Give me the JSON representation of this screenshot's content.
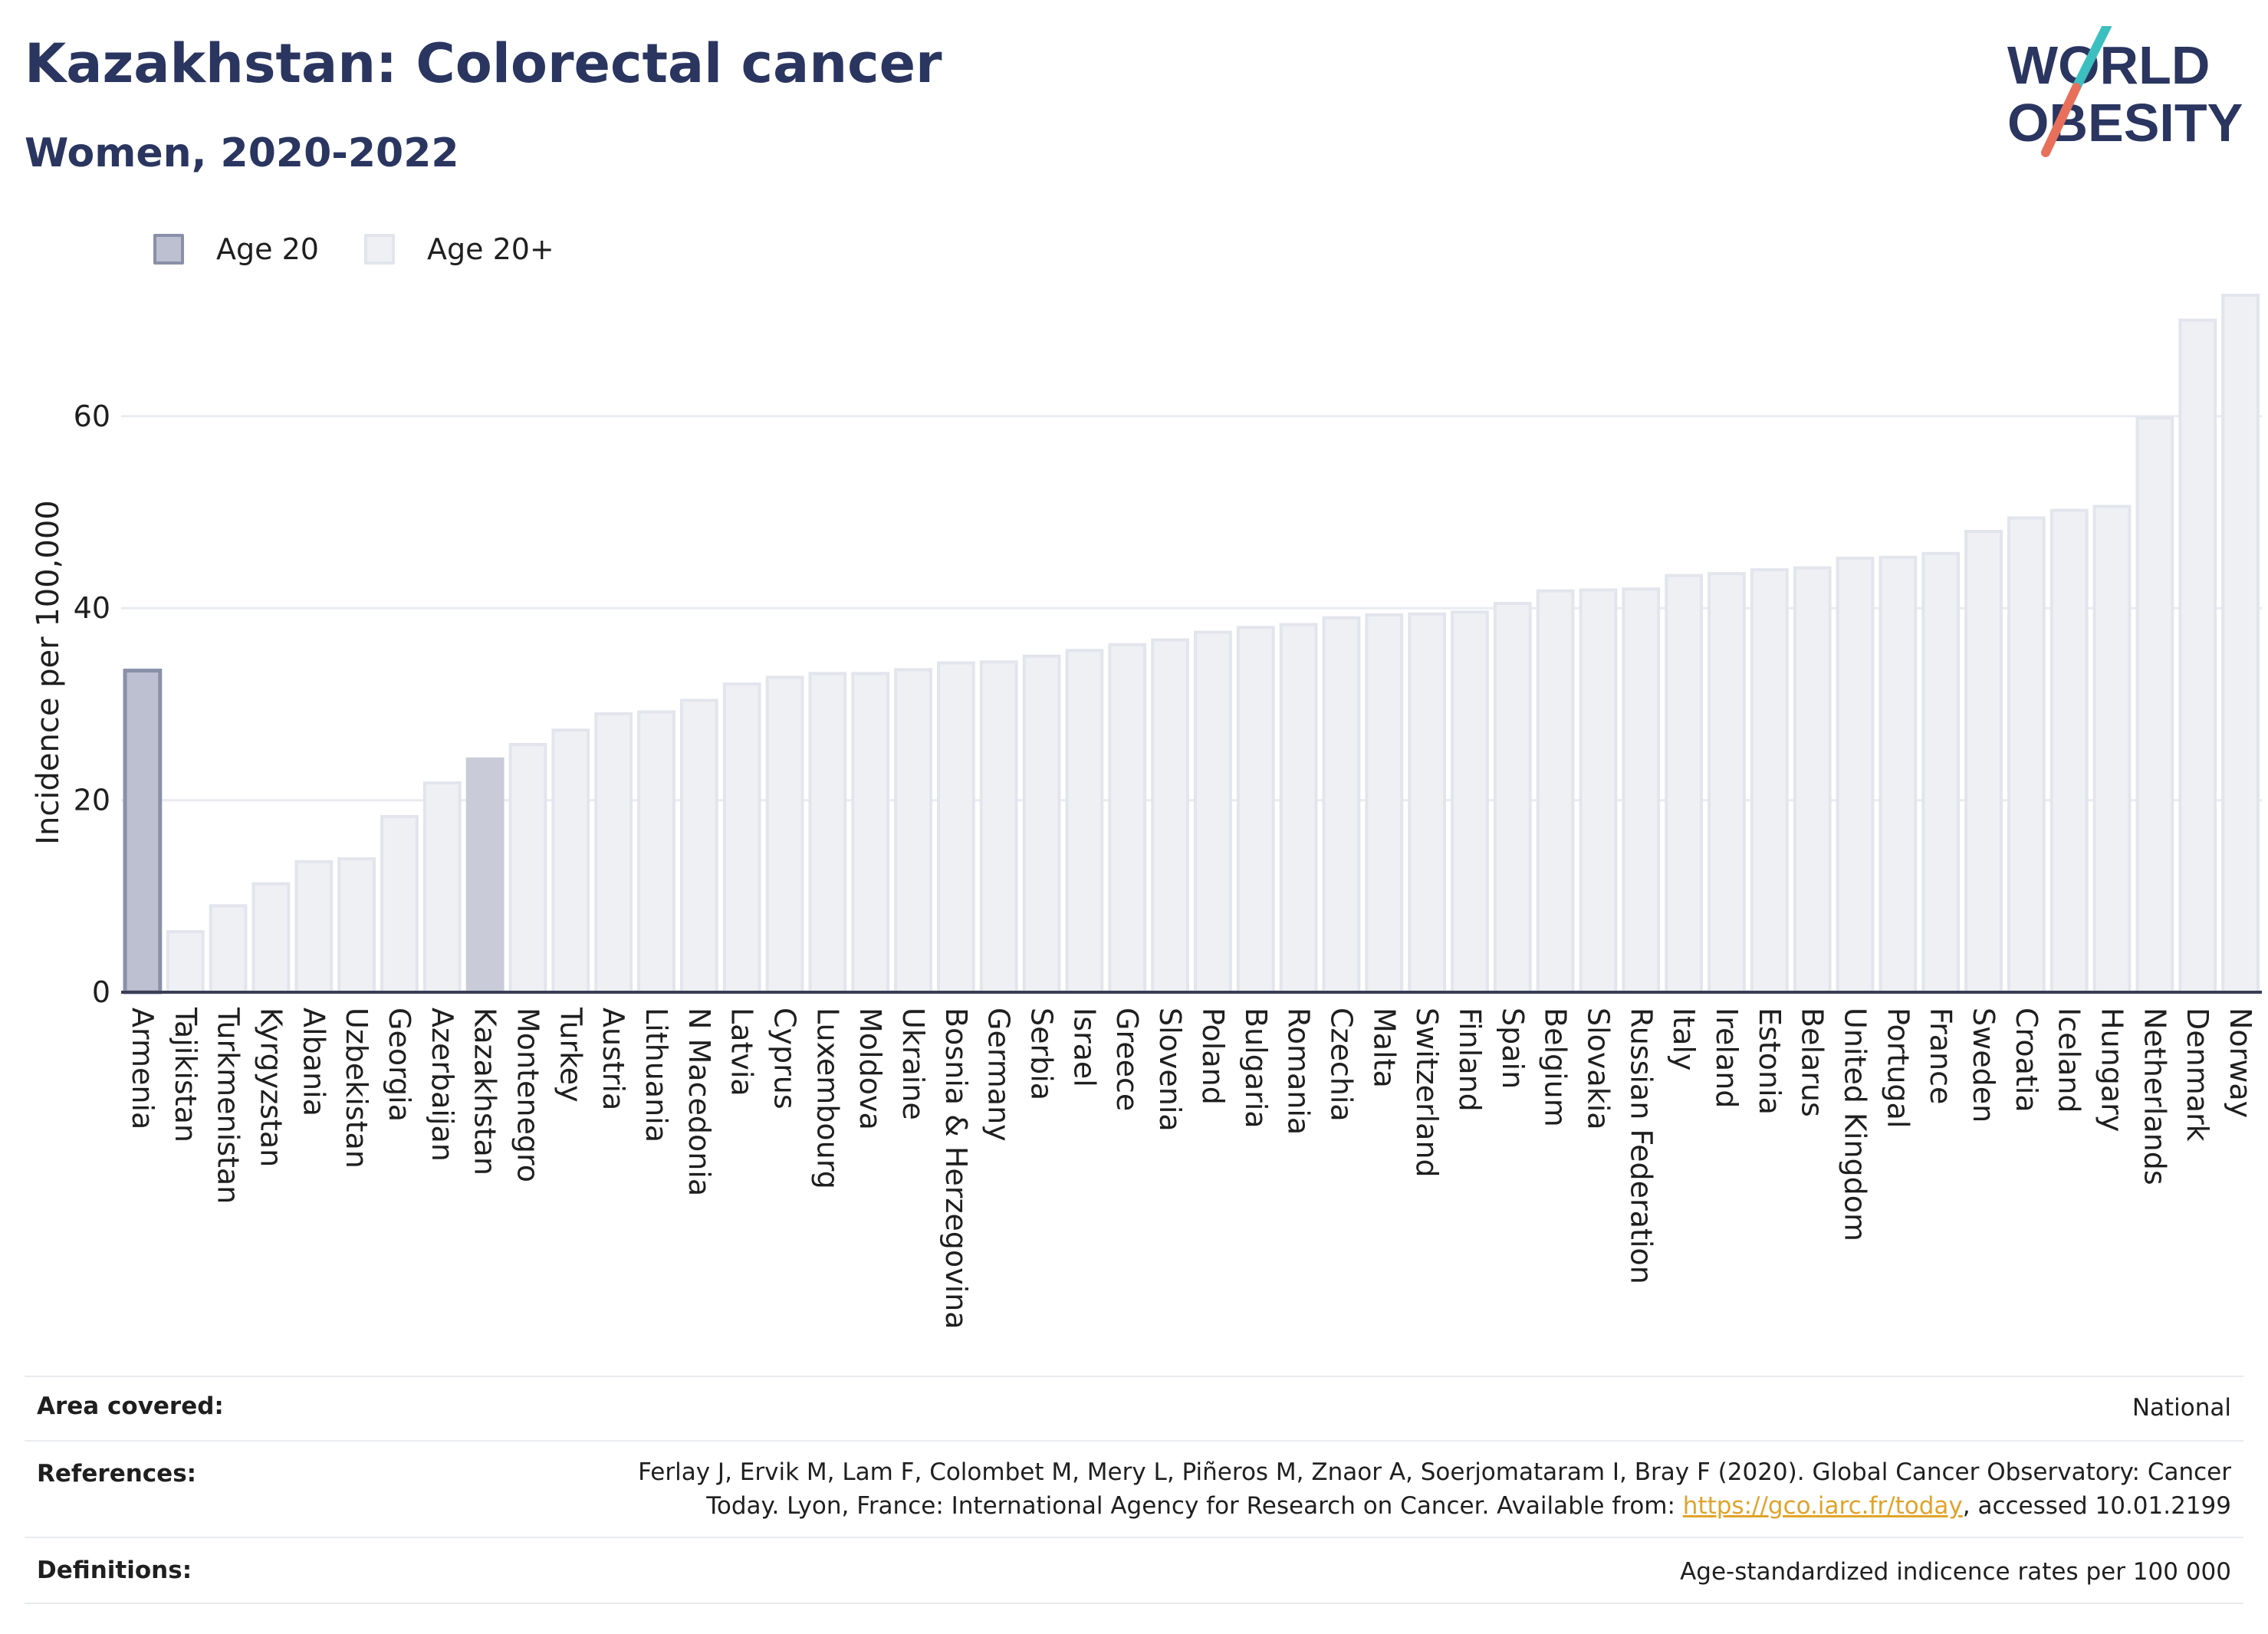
{
  "header": {
    "title": "Kazakhstan: Colorectal cancer",
    "subtitle": "Women, 2020-2022",
    "logo_line1": "WORLD",
    "logo_line2": "OBESITY"
  },
  "legend": {
    "items": [
      {
        "label": "Age 20",
        "color": "#bcc0d0",
        "border": "#8a90a8"
      },
      {
        "label": "Age 20+",
        "color": "#eef0f4",
        "border": "#e2e5ec"
      }
    ]
  },
  "chart_data": {
    "type": "bar",
    "ylabel": "Incidence per 100,000",
    "ylim": [
      0,
      73
    ],
    "yticks": [
      0,
      20,
      40,
      60
    ],
    "grid": true,
    "highlight": "Kazakhstan",
    "categories": [
      "Armenia",
      "Tajikistan",
      "Turkmenistan",
      "Kyrgyzstan",
      "Albania",
      "Uzbekistan",
      "Georgia",
      "Azerbaijan",
      "Kazakhstan",
      "Montenegro",
      "Turkey",
      "Austria",
      "Lithuania",
      "N Macedonia",
      "Latvia",
      "Cyprus",
      "Luxembourg",
      "Moldova",
      "Ukraine",
      "Bosnia & Herzegovina",
      "Germany",
      "Serbia",
      "Israel",
      "Greece",
      "Slovenia",
      "Poland",
      "Bulgaria",
      "Romania",
      "Czechia",
      "Malta",
      "Switzerland",
      "Finland",
      "Spain",
      "Belgium",
      "Slovakia",
      "Russian Federation",
      "Italy",
      "Ireland",
      "Estonia",
      "Belarus",
      "United Kingdom",
      "Portugal",
      "France",
      "Sweden",
      "Croatia",
      "Iceland",
      "Hungary",
      "Netherlands",
      "Denmark",
      "Norway"
    ],
    "series": [
      {
        "name": "Age 20",
        "values": [
          33.5,
          6.3,
          9,
          11.3,
          13.6,
          13.9,
          18.3,
          21.8,
          24.3,
          25.8,
          27.3,
          29,
          29.2,
          30.4,
          32.1,
          32.8,
          33.2,
          33.2,
          33.6,
          34.3,
          34.4,
          35,
          35.6,
          36.2,
          36.7,
          37.5,
          38,
          38.3,
          39,
          39.3,
          39.4,
          39.6,
          40.5,
          41.8,
          41.9,
          42,
          43.4,
          43.6,
          44,
          44.2,
          45.2,
          45.3,
          45.7,
          48,
          49.4,
          50.2,
          50.6,
          59.8,
          70,
          72.6
        ]
      }
    ]
  },
  "info": {
    "area_key": "Area covered:",
    "area_value": "National",
    "references_key": "References:",
    "references_line1": "Ferlay J, Ervik M, Lam F, Colombet M, Mery L, Piñeros M, Znaor A, Soerjomataram I, Bray F (2020). Global Cancer Observatory: Cancer",
    "references_line2_pre": "Today. Lyon, France: International Agency for Research on Cancer. Available from: ",
    "references_link": "https://gco.iarc.fr/today",
    "references_line2_post": ", accessed 10.01.2199",
    "definitions_key": "Definitions:",
    "definitions_value": "Age-standardized indicence rates per 100 000"
  },
  "colors": {
    "title": "#2a3560",
    "bar_fill": "#eef0f4",
    "bar_border": "#e2e5ec",
    "highlight_fill": "#c9ccd8",
    "first_fill": "#bcc0d0",
    "first_border": "#8a90a8",
    "grid": "#e8ebf0",
    "axis": "#3a3f55",
    "logo_teal": "#3cbfbf",
    "logo_coral": "#e8705a"
  }
}
